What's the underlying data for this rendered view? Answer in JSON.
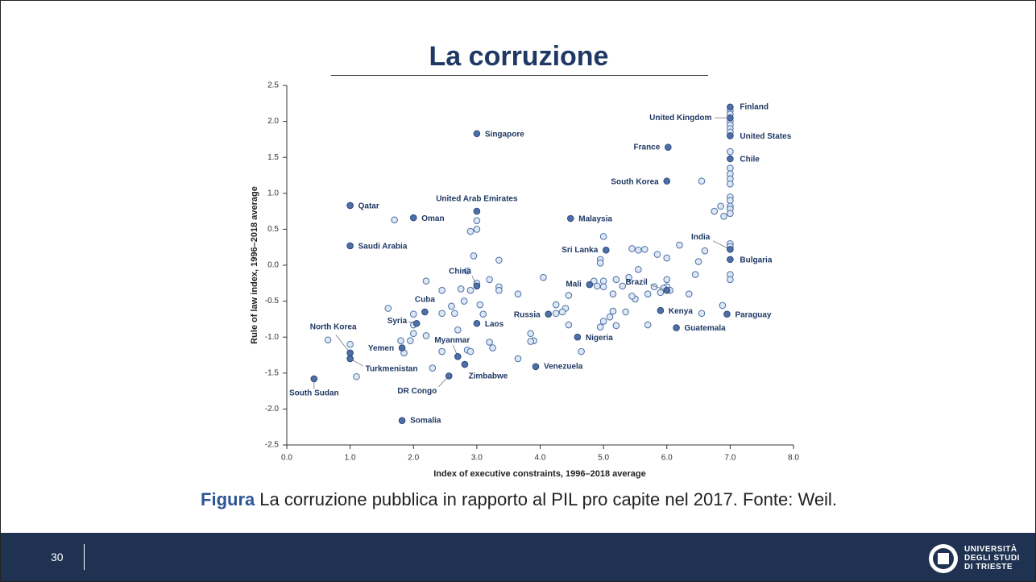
{
  "slide": {
    "title": "La corruzione",
    "caption_bold": "Figura",
    "caption": "La corruzione pubblica in rapporto al PIL pro capite nel 2017. Fonte: Weil.",
    "page_number": "30",
    "logo_lines": [
      "UNIVERSITÀ",
      "DEGLI STUDI",
      "DI TRIESTE"
    ]
  },
  "chart_data": {
    "type": "scatter",
    "x_label": "Index of executive constraints, 1996–2018 average",
    "y_label": "Rule of law index, 1996–2018 average",
    "xlim": [
      0,
      8
    ],
    "ylim": [
      -2.5,
      2.5
    ],
    "xticks": [
      {
        "value": 0,
        "label": "0.0"
      },
      {
        "value": 1,
        "label": "1.0"
      },
      {
        "value": 2,
        "label": "2.0"
      },
      {
        "value": 3,
        "label": "3.0"
      },
      {
        "value": 4,
        "label": "4.0"
      },
      {
        "value": 5,
        "label": "5.0"
      },
      {
        "value": 6,
        "label": "6.0"
      },
      {
        "value": 7,
        "label": "7.0"
      },
      {
        "value": 8,
        "label": "8.0"
      }
    ],
    "yticks": [
      -2.5,
      {
        "value": -2,
        "label": "-2.0"
      },
      -1.5,
      {
        "value": -1,
        "label": "-1.0"
      },
      -0.5,
      {
        "value": 0,
        "label": "0.0"
      },
      0.5,
      {
        "value": 1,
        "label": "1.0"
      },
      1.5,
      {
        "value": 2,
        "label": "2.0"
      },
      2.5
    ],
    "labeled_points": {
      "color": "#4f6fa8",
      "labels": [
        "Finland",
        "United Kingdom",
        "United States",
        "Singapore",
        "France",
        "Chile",
        "South Korea",
        "United Arab Emirates",
        "Qatar",
        "Oman",
        "Malaysia",
        "Saudi Arabia",
        "India",
        "Sri Lanka",
        "Bulgaria",
        "China",
        "Mali",
        "Brazil",
        "Cuba",
        "Russia",
        "Kenya",
        "Paraguay",
        "Syria",
        "Laos",
        "Guatemala",
        "Nigeria",
        "North Korea",
        "Yemen",
        "Myanmar",
        "Zimbabwe",
        "Turkmenistan",
        "Venezuela",
        "DR Congo",
        "South Sudan",
        "Somalia"
      ],
      "x": [
        7.0,
        7.0,
        7.0,
        3.0,
        6.02,
        7.0,
        6.0,
        3.0,
        1.0,
        2.0,
        4.48,
        1.0,
        7.0,
        5.04,
        7.0,
        3.0,
        4.78,
        6.0,
        2.18,
        4.13,
        5.9,
        6.95,
        2.05,
        3.0,
        6.15,
        4.59,
        1.0,
        1.82,
        2.7,
        2.81,
        1.0,
        3.93,
        2.56,
        0.43,
        1.82
      ],
      "y": [
        2.2,
        2.05,
        1.8,
        1.83,
        1.64,
        1.48,
        1.17,
        0.75,
        0.83,
        0.66,
        0.65,
        0.27,
        0.22,
        0.21,
        0.08,
        -0.29,
        -0.27,
        -0.35,
        -0.65,
        -0.68,
        -0.63,
        -0.68,
        -0.81,
        -0.81,
        -0.87,
        -1.0,
        -1.22,
        -1.15,
        -1.27,
        -1.38,
        -1.3,
        -1.41,
        -1.54,
        -1.58,
        -2.16
      ]
    },
    "other_points": {
      "color": "#dde7f5",
      "x": [
        7.0,
        7.0,
        7.0,
        7.0,
        7.0,
        7.0,
        7.0,
        7.0,
        7.0,
        7.0,
        7.0,
        7.0,
        7.0,
        7.0,
        7.0,
        7.0,
        7.0,
        7.0,
        7.0,
        7.0,
        6.9,
        6.85,
        6.75,
        6.55,
        6.6,
        6.5,
        6.45,
        6.35,
        6.55,
        6.88,
        6.2,
        6.0,
        6.0,
        6.0,
        6.05,
        5.95,
        5.9,
        5.85,
        5.8,
        5.7,
        5.65,
        5.55,
        5.45,
        5.5,
        5.45,
        5.35,
        5.55,
        5.4,
        5.3,
        5.2,
        5.15,
        5.15,
        5.2,
        5.1,
        5.0,
        4.95,
        5.0,
        5.0,
        4.85,
        4.9,
        5.0,
        4.95,
        4.95,
        4.65,
        5.7,
        4.45,
        4.4,
        4.35,
        4.25,
        4.25,
        4.45,
        4.05,
        3.85,
        3.9,
        3.85,
        3.65,
        3.65,
        3.35,
        3.35,
        3.35,
        3.2,
        3.05,
        3.1,
        3.2,
        3.25,
        3.0,
        3.0,
        2.95,
        2.9,
        2.85,
        2.9,
        3.0,
        2.75,
        2.6,
        2.65,
        2.7,
        2.85,
        2.9,
        2.8,
        2.45,
        2.45,
        2.45,
        2.3,
        2.2,
        2.2,
        2.0,
        2.0,
        2.0,
        1.95,
        1.85,
        1.6,
        1.7,
        1.0,
        0.65,
        1.1,
        1.8
      ],
      "y": [
        2.15,
        2.1,
        2.0,
        1.95,
        1.9,
        1.85,
        1.58,
        1.35,
        1.27,
        1.2,
        1.13,
        0.95,
        0.9,
        0.82,
        0.78,
        0.72,
        0.3,
        0.26,
        -0.13,
        -0.2,
        0.68,
        0.82,
        0.75,
        1.17,
        0.2,
        0.05,
        -0.13,
        -0.4,
        -0.67,
        -0.56,
        0.28,
        0.1,
        -0.2,
        -0.3,
        -0.35,
        -0.32,
        -0.38,
        0.15,
        -0.3,
        -0.4,
        0.22,
        0.21,
        0.23,
        -0.47,
        -0.43,
        -0.65,
        -0.06,
        -0.17,
        -0.29,
        -0.2,
        -0.4,
        -0.64,
        -0.84,
        -0.72,
        -0.78,
        -0.86,
        -0.22,
        -0.3,
        -0.22,
        -0.29,
        0.4,
        0.08,
        0.03,
        -1.2,
        -0.83,
        -0.83,
        -0.6,
        -0.65,
        -0.67,
        -0.55,
        -0.42,
        -0.17,
        -0.95,
        -1.05,
        -1.06,
        -0.4,
        -1.3,
        0.07,
        -0.3,
        -0.35,
        -0.2,
        -0.55,
        -0.68,
        -1.07,
        -1.15,
        0.62,
        0.5,
        0.13,
        0.47,
        -0.08,
        -0.35,
        -0.25,
        -0.33,
        -0.57,
        -0.67,
        -0.9,
        -1.18,
        -1.2,
        -0.5,
        -0.35,
        -0.67,
        -1.2,
        -1.43,
        -0.22,
        -0.98,
        -0.68,
        -0.83,
        -0.95,
        -1.05,
        -1.22,
        -0.6,
        0.63,
        -1.1,
        -1.04,
        -1.55,
        -1.05
      ]
    }
  }
}
